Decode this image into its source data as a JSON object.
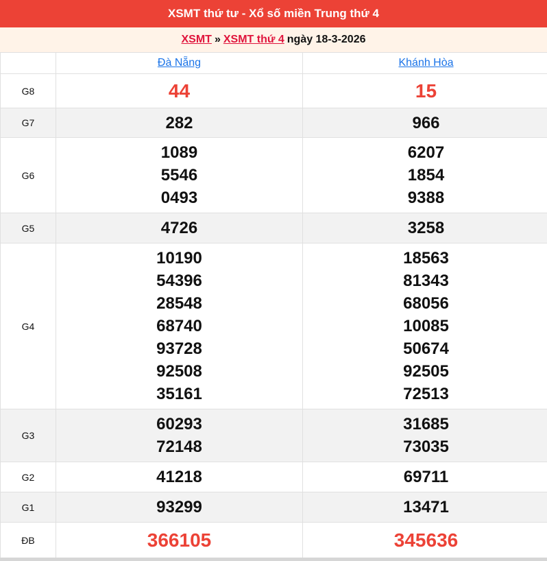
{
  "title": "XSMT thứ tư - Xổ số miền Trung thứ 4",
  "breadcrumb": {
    "link1": "XSMT",
    "sep": "»",
    "link2": "XSMT thứ 4",
    "date": "ngày 18-3-2026"
  },
  "provinces": [
    "Đà Nẵng",
    "Khánh Hòa"
  ],
  "rows": [
    {
      "label": "G8",
      "a": [
        "44"
      ],
      "b": [
        "15"
      ]
    },
    {
      "label": "G7",
      "a": [
        "282"
      ],
      "b": [
        "966"
      ]
    },
    {
      "label": "G6",
      "a": [
        "1089",
        "5546",
        "0493"
      ],
      "b": [
        "6207",
        "1854",
        "9388"
      ]
    },
    {
      "label": "G5",
      "a": [
        "4726"
      ],
      "b": [
        "3258"
      ]
    },
    {
      "label": "G4",
      "a": [
        "10190",
        "54396",
        "28548",
        "68740",
        "93728",
        "92508",
        "35161"
      ],
      "b": [
        "18563",
        "81343",
        "68056",
        "10085",
        "50674",
        "92505",
        "72513"
      ]
    },
    {
      "label": "G3",
      "a": [
        "60293",
        "72148"
      ],
      "b": [
        "31685",
        "73035"
      ]
    },
    {
      "label": "G2",
      "a": [
        "41218"
      ],
      "b": [
        "69711"
      ]
    },
    {
      "label": "G1",
      "a": [
        "93299"
      ],
      "b": [
        "13471"
      ]
    },
    {
      "label": "ĐB",
      "a": [
        "366105"
      ],
      "b": [
        "345636"
      ]
    }
  ],
  "colors": {
    "header": "#ec4236",
    "highlight": "#ec4236",
    "link": "#1a73e8"
  }
}
